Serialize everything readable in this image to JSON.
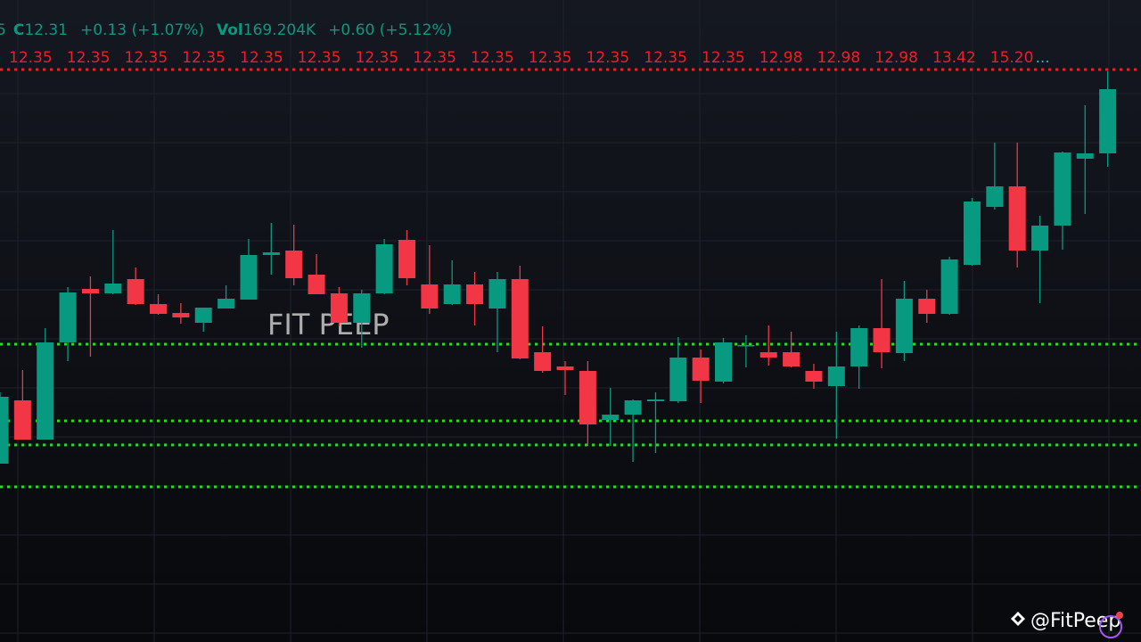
{
  "chart_data": {
    "type": "candlestick",
    "header": [
      {
        "label": "C",
        "value": "12.31"
      },
      {
        "value": "+0.13 (+1.07%)"
      },
      {
        "label": "Vol",
        "value": "169.204K"
      },
      {
        "value": "+0.60 (+5.12%)"
      }
    ],
    "header_prefix": "5",
    "price_tags": [
      "12.35",
      "12.35",
      "12.35",
      "12.35",
      "12.35",
      "12.35",
      "12.35",
      "12.35",
      "12.35",
      "12.35",
      "12.35",
      "12.35",
      "12.35",
      "12.98",
      "12.98",
      "12.98",
      "13.42",
      "15.20"
    ],
    "price_tags_more": "...",
    "watermark": "FIT PEEP",
    "credit": "@FitPeep",
    "ylim": [
      8,
      15.2
    ],
    "up_color": "#089981",
    "down_color": "#f23645",
    "open": [
      10.0,
      10.71,
      10.27,
      11.36,
      11.96,
      11.91,
      12.07,
      11.79,
      11.69,
      11.58,
      11.74,
      11.84,
      12.34,
      12.39,
      12.12,
      11.91,
      11.58,
      11.91,
      12.51,
      12.01,
      11.79,
      12.01,
      11.74,
      12.07,
      11.25,
      11.09,
      11.04,
      10.49,
      10.55,
      10.7,
      10.7,
      11.19,
      10.92,
      11.32,
      11.25,
      11.25,
      11.04,
      10.87,
      11.09,
      11.52,
      11.24,
      11.85,
      11.68,
      12.23,
      12.88,
      13.11,
      12.39,
      12.67,
      13.42,
      13.48
    ],
    "high": [
      10.8,
      11.05,
      11.52,
      11.98,
      12.1,
      12.62,
      12.2,
      11.9,
      11.8,
      11.75,
      12.0,
      12.52,
      12.7,
      12.68,
      12.35,
      11.98,
      11.95,
      12.52,
      12.62,
      12.45,
      12.28,
      12.15,
      12.15,
      12.22,
      11.54,
      11.15,
      11.15,
      10.85,
      10.72,
      10.8,
      11.42,
      11.28,
      11.41,
      11.44,
      11.55,
      11.48,
      11.12,
      11.48,
      11.55,
      12.07,
      12.05,
      11.95,
      12.32,
      12.98,
      13.6,
      13.6,
      12.78,
      13.5,
      14.02,
      14.4
    ],
    "low": [
      10.0,
      10.27,
      10.27,
      11.15,
      11.2,
      11.9,
      11.78,
      11.67,
      11.57,
      11.48,
      11.74,
      11.84,
      12.12,
      12.0,
      11.9,
      11.54,
      11.3,
      11.9,
      12.0,
      11.68,
      11.78,
      11.55,
      11.25,
      11.17,
      11.02,
      10.77,
      10.2,
      10.2,
      10.02,
      10.12,
      10.68,
      10.68,
      10.9,
      11.08,
      11.1,
      11.08,
      10.84,
      10.28,
      10.84,
      11.07,
      11.15,
      11.58,
      11.67,
      12.22,
      12.85,
      12.2,
      11.8,
      12.4,
      12.8,
      13.33
    ],
    "close": [
      10.75,
      10.27,
      11.36,
      11.92,
      11.91,
      12.02,
      11.79,
      11.68,
      11.64,
      11.75,
      11.85,
      12.34,
      12.37,
      12.08,
      11.9,
      11.58,
      11.91,
      12.46,
      12.08,
      11.74,
      12.01,
      11.79,
      12.07,
      11.18,
      11.04,
      11.05,
      10.44,
      10.55,
      10.71,
      10.72,
      11.19,
      10.93,
      11.36,
      11.33,
      11.19,
      11.09,
      10.92,
      11.09,
      11.52,
      11.25,
      11.85,
      11.68,
      12.29,
      12.94,
      13.11,
      12.39,
      12.67,
      13.49,
      13.48,
      14.2
    ],
    "levels": [
      {
        "value": 14.42,
        "color": "#e8202a"
      },
      {
        "value": 11.34,
        "color": "#22e01a"
      },
      {
        "value": 10.48,
        "color": "#22e01a"
      },
      {
        "value": 10.21,
        "color": "#22e01a"
      },
      {
        "value": 9.74,
        "color": "#22e01a"
      }
    ]
  }
}
